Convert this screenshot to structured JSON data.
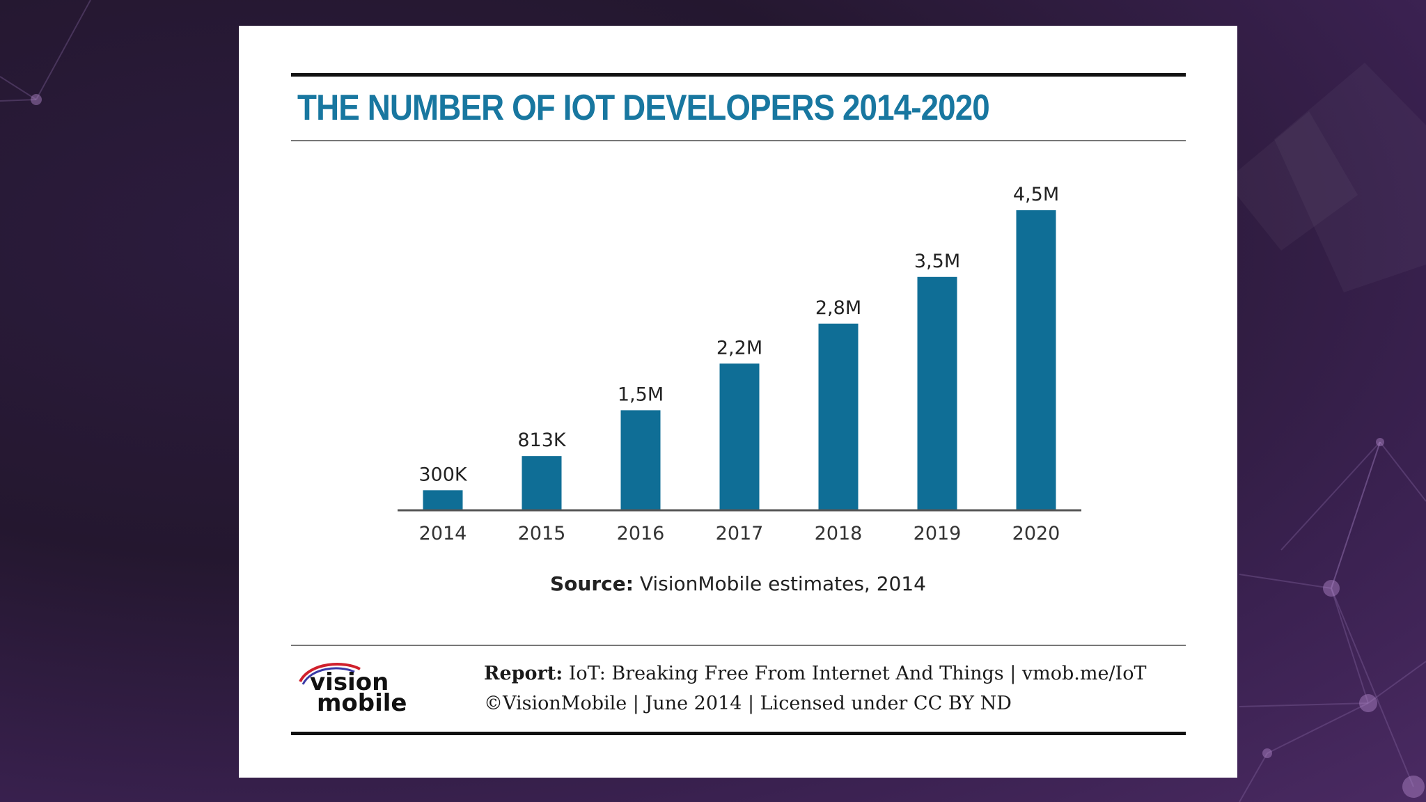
{
  "title": "THE NUMBER OF IOT DEVELOPERS 2014-2020",
  "chart_data": {
    "type": "bar",
    "title": "THE NUMBER OF IOT DEVELOPERS 2014-2020",
    "categories": [
      "2014",
      "2015",
      "2016",
      "2017",
      "2018",
      "2019",
      "2020"
    ],
    "values": [
      0.3,
      0.813,
      1.5,
      2.2,
      2.8,
      3.5,
      4.5
    ],
    "value_labels": [
      "300K",
      "813K",
      "1,5M",
      "2,2M",
      "2,8M",
      "3,5M",
      "4,5M"
    ],
    "unit": "millions of developers",
    "xlabel": "",
    "ylabel": "",
    "ylim": [
      0,
      4.5
    ],
    "bar_color": "#0f6e96",
    "grid": false
  },
  "source": {
    "label": "Source:",
    "text": " VisionMobile estimates, 2014"
  },
  "footer": {
    "report_label": "Report:",
    "report_text": " IoT: Breaking Free From Internet And Things | vmob.me/IoT",
    "copyright": "©VisionMobile | June 2014 | Licensed under CC BY ND",
    "logo_top": "vision",
    "logo_bottom": "mobile"
  },
  "colors": {
    "title": "#1877a0",
    "bar": "#0f6e96",
    "background": "#2a1a3a"
  }
}
